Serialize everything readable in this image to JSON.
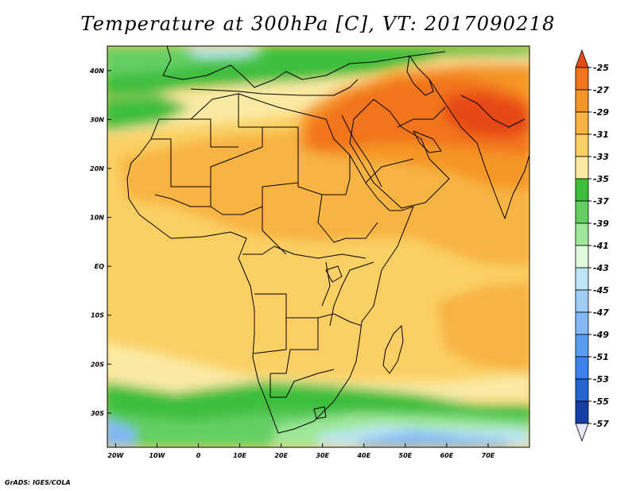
{
  "title": "Temperature at 300hPa [C], VT: 2017090218",
  "credit": "GrADS: IGES/COLA",
  "map": {
    "lat_labels": [
      {
        "value": 40,
        "text": "40N"
      },
      {
        "value": 30,
        "text": "30N"
      },
      {
        "value": 20,
        "text": "20N"
      },
      {
        "value": 10,
        "text": "10N"
      },
      {
        "value": 0,
        "text": "EQ"
      },
      {
        "value": -10,
        "text": "10S"
      },
      {
        "value": -20,
        "text": "20S"
      },
      {
        "value": -30,
        "text": "30S"
      }
    ],
    "lon_labels": [
      {
        "value": -20,
        "text": "20W"
      },
      {
        "value": -10,
        "text": "10W"
      },
      {
        "value": 0,
        "text": "0"
      },
      {
        "value": 10,
        "text": "10E"
      },
      {
        "value": 20,
        "text": "20E"
      },
      {
        "value": 30,
        "text": "30E"
      },
      {
        "value": 40,
        "text": "40E"
      },
      {
        "value": 50,
        "text": "50E"
      },
      {
        "value": 60,
        "text": "60E"
      },
      {
        "value": 70,
        "text": "70E"
      }
    ],
    "lon_range": [
      -22,
      80
    ],
    "lat_range": [
      -37,
      45
    ]
  },
  "colorbar": {
    "levels": [
      "-25",
      "-27",
      "-29",
      "-31",
      "-33",
      "-35",
      "-37",
      "-39",
      "-41",
      "-43",
      "-45",
      "-47",
      "-49",
      "-51",
      "-53",
      "-55",
      "-57"
    ],
    "colors_top_to_bottom": [
      "#e64a16",
      "#f2741c",
      "#f59628",
      "#f7b443",
      "#fad065",
      "#fbeaa4",
      "#3cbe3c",
      "#63cf63",
      "#9fe89a",
      "#dffadf",
      "#bde6f5",
      "#9fcef7",
      "#82b8f5",
      "#5a9ef0",
      "#3c82ea",
      "#2464d2",
      "#163fa6",
      "#0a1a78",
      "#e6e6ff"
    ]
  }
}
